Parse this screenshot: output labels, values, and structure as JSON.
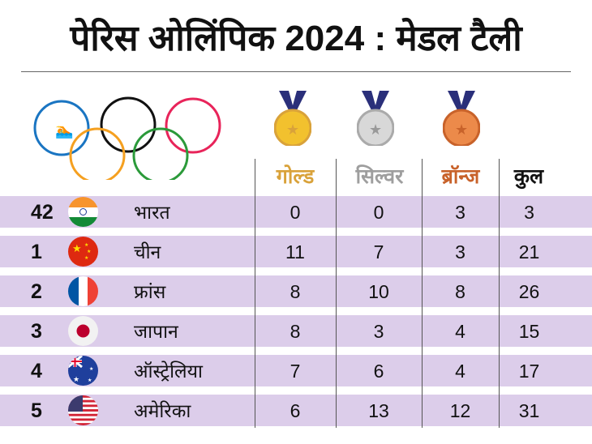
{
  "title": "पेरिस ओलिंपिक 2024 : मेडल टैली",
  "columns": {
    "gold": "गोल्ड",
    "silver": "सिल्वर",
    "bronze": "ब्रॉन्ज",
    "total": "कुल"
  },
  "colors": {
    "gold": "#d9a23a",
    "silver": "#9e9e9e",
    "bronze": "#c8622a",
    "row_bg": "#dccdea"
  },
  "rows": [
    {
      "rank": "42",
      "country": "भारत",
      "flag": "india-flag",
      "gold": "0",
      "silver": "0",
      "bronze": "3",
      "total": "3"
    },
    {
      "rank": "1",
      "country": "चीन",
      "flag": "china-flag",
      "gold": "11",
      "silver": "7",
      "bronze": "3",
      "total": "21"
    },
    {
      "rank": "2",
      "country": "फ्रांस",
      "flag": "france-flag",
      "gold": "8",
      "silver": "10",
      "bronze": "8",
      "total": "26"
    },
    {
      "rank": "3",
      "country": "जापान",
      "flag": "japan-flag",
      "gold": "8",
      "silver": "3",
      "bronze": "4",
      "total": "15"
    },
    {
      "rank": "4",
      "country": "ऑस्ट्रेलिया",
      "flag": "australia-flag",
      "gold": "7",
      "silver": "6",
      "bronze": "4",
      "total": "17"
    },
    {
      "rank": "5",
      "country": "अमेरिका",
      "flag": "usa-flag",
      "gold": "6",
      "silver": "13",
      "bronze": "12",
      "total": "31"
    }
  ]
}
